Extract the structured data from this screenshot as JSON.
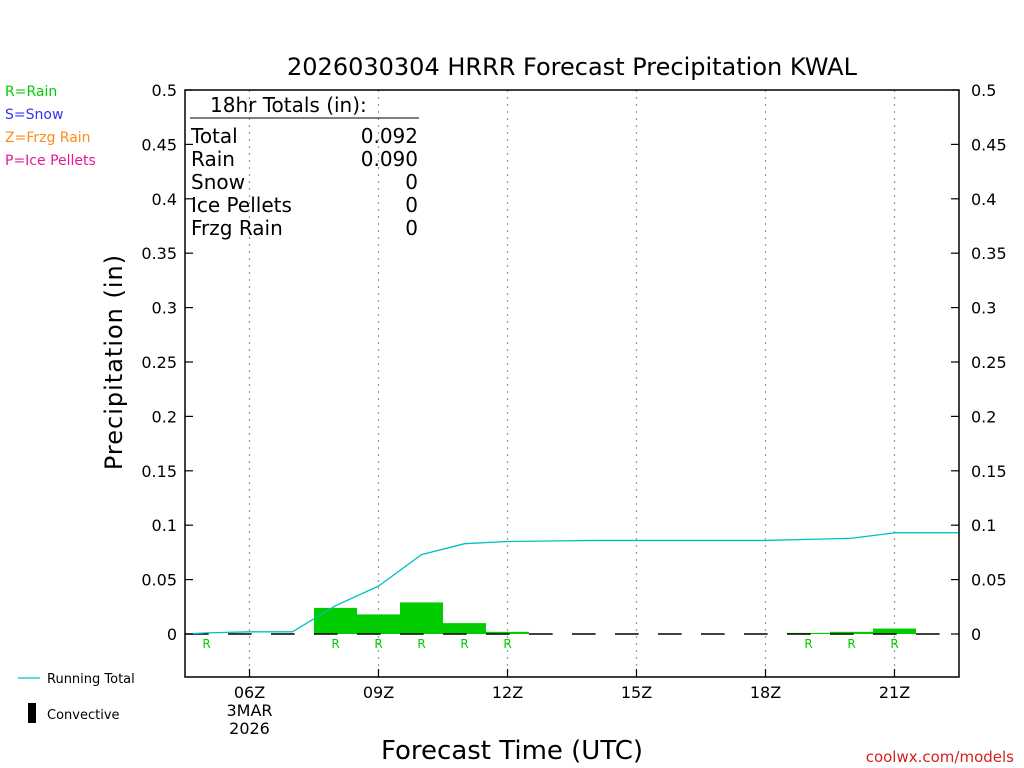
{
  "title": "2026030304 HRRR Forecast Precipitation KWAL",
  "type_legend": [
    {
      "text": "R=Rain",
      "color": "#00cc00"
    },
    {
      "text": "S=Snow",
      "color": "#3333ee"
    },
    {
      "text": "Z=Frzg Rain",
      "color": "#ff8c1a"
    },
    {
      "text": "P=Ice Pellets",
      "color": "#e8179a"
    }
  ],
  "totals": {
    "header": "18hr Totals (in):",
    "rows": [
      {
        "label": "Total",
        "value": "0.092"
      },
      {
        "label": "Rain",
        "value": "0.090"
      },
      {
        "label": "Snow",
        "value": "0"
      },
      {
        "label": "Ice Pellets",
        "value": "0"
      },
      {
        "label": "Frzg Rain",
        "value": "0"
      }
    ]
  },
  "key": {
    "running_total": "Running Total",
    "convective": "Convective"
  },
  "site": "coolwx.com/models",
  "colors": {
    "bar": "#00cc00",
    "running_total": "#00c0c0",
    "rain_label": "#00cc00",
    "grid": "#999999"
  },
  "chart_data": {
    "type": "bar",
    "xlabel": "Forecast Time (UTC)",
    "ylabel": "Precipitation (in)",
    "ylim": [
      -0.04,
      0.5
    ],
    "xlim": [
      4.5,
      22.5
    ],
    "yticks": [
      "0.5",
      "0.45",
      "0.4",
      "0.35",
      "0.3",
      "0.25",
      "0.2",
      "0.15",
      "0.1",
      "0.05",
      "0"
    ],
    "xticks": [
      {
        "hour": 6,
        "lines": [
          "06Z",
          "3MAR",
          "2026"
        ]
      },
      {
        "hour": 9,
        "lines": [
          "09Z"
        ]
      },
      {
        "hour": 12,
        "lines": [
          "12Z"
        ]
      },
      {
        "hour": 15,
        "lines": [
          "15Z"
        ]
      },
      {
        "hour": 18,
        "lines": [
          "18Z"
        ]
      },
      {
        "hour": 21,
        "lines": [
          "21Z"
        ]
      }
    ],
    "grid": "vertical dotted",
    "bars": [
      {
        "hour": 5,
        "value": 0.0,
        "type": "R"
      },
      {
        "hour": 6,
        "value": 0.0,
        "type": ""
      },
      {
        "hour": 7,
        "value": 0.0,
        "type": ""
      },
      {
        "hour": 8,
        "value": 0.024,
        "type": "R"
      },
      {
        "hour": 9,
        "value": 0.018,
        "type": "R"
      },
      {
        "hour": 10,
        "value": 0.029,
        "type": "R"
      },
      {
        "hour": 11,
        "value": 0.01,
        "type": "R"
      },
      {
        "hour": 12,
        "value": 0.002,
        "type": "R"
      },
      {
        "hour": 13,
        "value": 0.0,
        "type": ""
      },
      {
        "hour": 14,
        "value": 0.0,
        "type": ""
      },
      {
        "hour": 15,
        "value": 0.0,
        "type": ""
      },
      {
        "hour": 16,
        "value": 0.0,
        "type": ""
      },
      {
        "hour": 17,
        "value": 0.0,
        "type": ""
      },
      {
        "hour": 18,
        "value": 0.0,
        "type": ""
      },
      {
        "hour": 19,
        "value": 0.001,
        "type": "R"
      },
      {
        "hour": 20,
        "value": 0.002,
        "type": "R"
      },
      {
        "hour": 21,
        "value": 0.005,
        "type": "R"
      },
      {
        "hour": 22,
        "value": 0.0,
        "type": ""
      }
    ],
    "running_total": {
      "name": "Running Total",
      "x": [
        4.5,
        5,
        6,
        7,
        8,
        9,
        10,
        11,
        12,
        13,
        14,
        15,
        16,
        17,
        18,
        19,
        20,
        21,
        22,
        22.5
      ],
      "y": [
        0.0,
        0.001,
        0.002,
        0.002,
        0.026,
        0.044,
        0.073,
        0.083,
        0.085,
        0.0855,
        0.086,
        0.086,
        0.086,
        0.086,
        0.086,
        0.087,
        0.088,
        0.093,
        0.093,
        0.093
      ]
    }
  }
}
